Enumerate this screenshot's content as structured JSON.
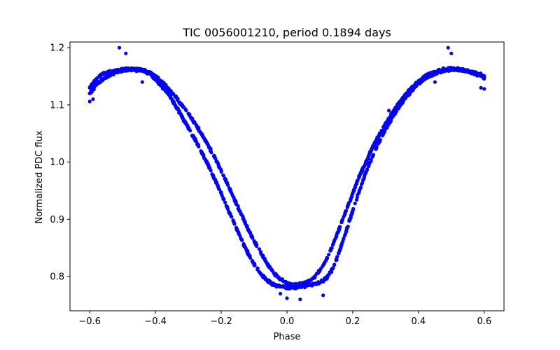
{
  "chart_data": {
    "type": "scatter",
    "title": "TIC 0056001210, period 0.1894 days",
    "xlabel": "Phase",
    "ylabel": "Normalized PDC flux",
    "xlim": [
      -0.66,
      0.66
    ],
    "ylim": [
      0.74,
      1.21
    ],
    "xticks": [
      -0.6,
      -0.4,
      -0.2,
      0.0,
      0.2,
      0.4,
      0.6
    ],
    "xtick_labels": [
      "−0.6",
      "−0.4",
      "−0.2",
      "0.0",
      "0.2",
      "0.4",
      "0.6"
    ],
    "yticks": [
      0.8,
      0.9,
      1.0,
      1.1,
      1.2
    ],
    "ytick_labels": [
      "0.8",
      "0.9",
      "1.0",
      "1.1",
      "1.2"
    ],
    "grid": false,
    "legend": "none",
    "marker_color": "#0000ff",
    "series": [
      {
        "description_branch": "upper/left branch",
        "x": [
          -0.6,
          -0.58,
          -0.56,
          -0.54,
          -0.52,
          -0.5,
          -0.48,
          -0.46,
          -0.44,
          -0.42,
          -0.4,
          -0.38,
          -0.36,
          -0.34,
          -0.32,
          -0.3,
          -0.28,
          -0.26,
          -0.24,
          -0.22,
          -0.2,
          -0.18,
          -0.16,
          -0.14,
          -0.12,
          -0.1,
          -0.08,
          -0.06,
          -0.04,
          -0.02,
          0.0,
          0.02,
          0.04,
          0.06,
          0.08,
          0.1,
          0.12,
          0.14,
          0.16,
          0.18,
          0.2,
          0.22,
          0.24,
          0.26,
          0.28,
          0.3,
          0.32,
          0.34,
          0.36,
          0.38,
          0.4,
          0.42,
          0.44,
          0.46,
          0.48,
          0.5,
          0.52,
          0.54,
          0.56,
          0.58,
          0.6
        ],
        "y": [
          1.13,
          1.145,
          1.155,
          1.158,
          1.16,
          1.162,
          1.163,
          1.163,
          1.162,
          1.158,
          1.15,
          1.14,
          1.128,
          1.115,
          1.1,
          1.085,
          1.068,
          1.05,
          1.03,
          1.008,
          0.985,
          0.96,
          0.935,
          0.91,
          0.885,
          0.862,
          0.842,
          0.822,
          0.806,
          0.795,
          0.788,
          0.786,
          0.787,
          0.79,
          0.797,
          0.81,
          0.83,
          0.856,
          0.885,
          0.915,
          0.945,
          0.975,
          1.0,
          1.025,
          1.047,
          1.067,
          1.086,
          1.103,
          1.118,
          1.131,
          1.142,
          1.15,
          1.156,
          1.16,
          1.162,
          1.163,
          1.162,
          1.16,
          1.157,
          1.152,
          1.148
        ]
      },
      {
        "description_branch": "lower/right branch",
        "x": [
          -0.6,
          -0.58,
          -0.56,
          -0.54,
          -0.52,
          -0.5,
          -0.48,
          -0.46,
          -0.44,
          -0.42,
          -0.4,
          -0.38,
          -0.36,
          -0.34,
          -0.32,
          -0.3,
          -0.28,
          -0.26,
          -0.24,
          -0.22,
          -0.2,
          -0.18,
          -0.16,
          -0.14,
          -0.12,
          -0.1,
          -0.08,
          -0.06,
          -0.04,
          -0.02,
          0.0,
          0.02,
          0.04,
          0.06,
          0.08,
          0.1,
          0.12,
          0.14,
          0.16,
          0.18,
          0.2,
          0.22,
          0.24,
          0.26,
          0.28,
          0.3,
          0.32,
          0.34,
          0.36,
          0.38,
          0.4,
          0.42,
          0.44,
          0.46,
          0.48,
          0.5,
          0.52,
          0.54,
          0.56,
          0.58,
          0.6
        ],
        "y": [
          1.12,
          1.135,
          1.145,
          1.152,
          1.157,
          1.16,
          1.162,
          1.162,
          1.16,
          1.155,
          1.145,
          1.132,
          1.118,
          1.1,
          1.08,
          1.06,
          1.04,
          1.018,
          0.995,
          0.97,
          0.945,
          0.918,
          0.892,
          0.866,
          0.842,
          0.822,
          0.805,
          0.793,
          0.786,
          0.782,
          0.781,
          0.781,
          0.782,
          0.784,
          0.786,
          0.789,
          0.797,
          0.815,
          0.845,
          0.88,
          0.915,
          0.95,
          0.982,
          1.01,
          1.035,
          1.058,
          1.078,
          1.096,
          1.112,
          1.126,
          1.137,
          1.146,
          1.152,
          1.157,
          1.16,
          1.162,
          1.162,
          1.161,
          1.158,
          1.155,
          1.15
        ]
      }
    ],
    "outliers": [
      {
        "x": -0.51,
        "y": 1.2
      },
      {
        "x": -0.49,
        "y": 1.19
      },
      {
        "x": 0.49,
        "y": 1.2
      },
      {
        "x": 0.5,
        "y": 1.19
      },
      {
        "x": -0.6,
        "y": 1.106
      },
      {
        "x": 0.6,
        "y": 1.128
      },
      {
        "x": -0.59,
        "y": 1.11
      },
      {
        "x": 0.59,
        "y": 1.13
      },
      {
        "x": 0.04,
        "y": 0.76
      },
      {
        "x": 0.0,
        "y": 0.762
      },
      {
        "x": 0.11,
        "y": 0.767
      },
      {
        "x": -0.02,
        "y": 0.77
      },
      {
        "x": -0.44,
        "y": 1.14
      },
      {
        "x": 0.45,
        "y": 1.14
      },
      {
        "x": -0.3,
        "y": 1.06
      },
      {
        "x": 0.31,
        "y": 1.09
      }
    ]
  }
}
